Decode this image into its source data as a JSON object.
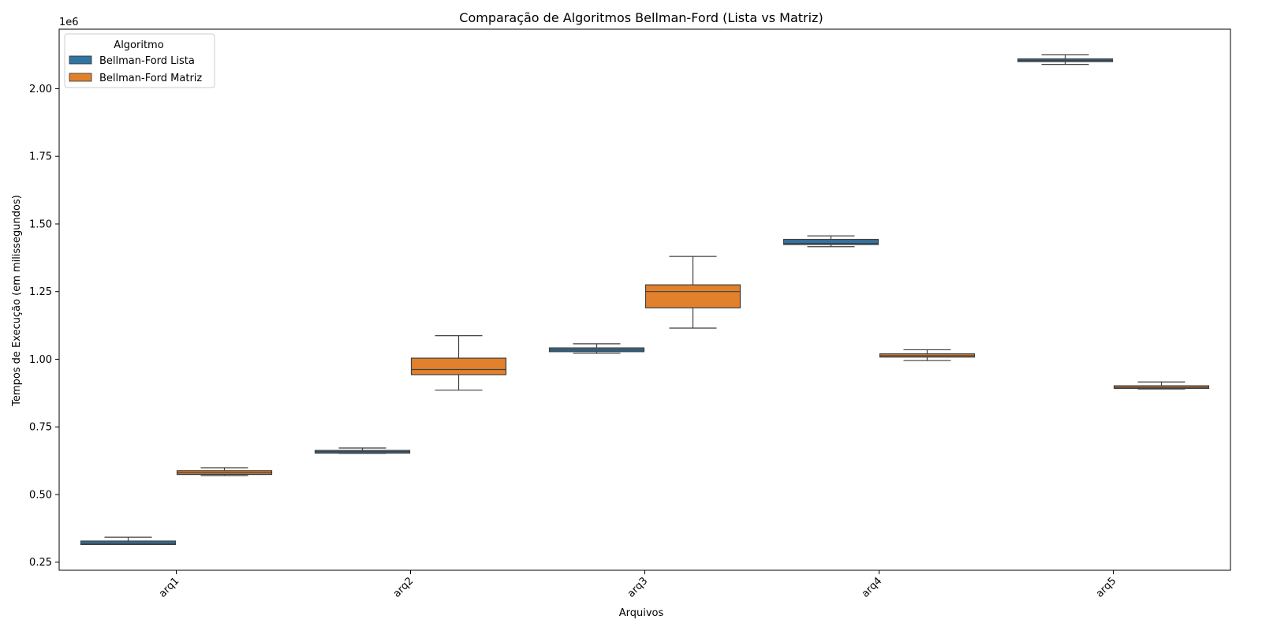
{
  "chart_data": {
    "type": "box",
    "title": "Comparação de Algoritmos Bellman-Ford (Lista vs Matriz)",
    "xlabel": "Arquivos",
    "ylabel": "Tempos de Execução (em milissegundos)",
    "y_offset_label": "1e6",
    "ylim": [
      0.22,
      2.22
    ],
    "y_ticks": [
      0.25,
      0.5,
      0.75,
      1.0,
      1.25,
      1.5,
      1.75,
      2.0
    ],
    "y_tick_labels": [
      "0.25",
      "0.50",
      "0.75",
      "1.00",
      "1.25",
      "1.50",
      "1.75",
      "2.00"
    ],
    "categories": [
      "arq1",
      "arq2",
      "arq3",
      "arq4",
      "arq5"
    ],
    "legend": {
      "title": "Algoritmo",
      "position": "top-left"
    },
    "grid": false,
    "series": [
      {
        "name": "Bellman-Ford Lista",
        "color": "#3274a1",
        "boxes": [
          {
            "whisker_low": 0.315,
            "q1": 0.315,
            "median": 0.32,
            "q3": 0.328,
            "whisker_high": 0.342
          },
          {
            "whisker_low": 0.652,
            "q1": 0.653,
            "median": 0.658,
            "q3": 0.663,
            "whisker_high": 0.672
          },
          {
            "whisker_low": 1.022,
            "q1": 1.028,
            "median": 1.034,
            "q3": 1.042,
            "whisker_high": 1.057
          },
          {
            "whisker_low": 1.416,
            "q1": 1.424,
            "median": 1.428,
            "q3": 1.443,
            "whisker_high": 1.456
          },
          {
            "whisker_low": 2.09,
            "q1": 2.1,
            "median": 2.105,
            "q3": 2.11,
            "whisker_high": 2.125
          }
        ]
      },
      {
        "name": "Bellman-Ford Matriz",
        "color": "#e1812c",
        "boxes": [
          {
            "whisker_low": 0.57,
            "q1": 0.574,
            "median": 0.58,
            "q3": 0.588,
            "whisker_high": 0.599
          },
          {
            "whisker_low": 0.886,
            "q1": 0.943,
            "median": 0.962,
            "q3": 1.004,
            "whisker_high": 1.087
          },
          {
            "whisker_low": 1.115,
            "q1": 1.19,
            "median": 1.25,
            "q3": 1.275,
            "whisker_high": 1.38
          },
          {
            "whisker_low": 0.995,
            "q1": 1.008,
            "median": 1.013,
            "q3": 1.02,
            "whisker_high": 1.035
          },
          {
            "whisker_low": 0.89,
            "q1": 0.892,
            "median": 0.896,
            "q3": 0.902,
            "whisker_high": 0.916
          }
        ]
      }
    ]
  }
}
